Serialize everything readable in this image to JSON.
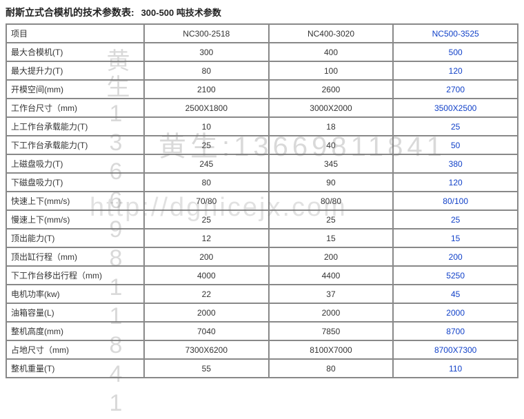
{
  "title_main": "耐斯立式合模机的技术参数表:",
  "title_sub": "300-500 吨技术参数",
  "columns": {
    "item": "项目",
    "nc300": "NC300-2518",
    "nc400": "NC400-3020",
    "nc500": "NC500-3525"
  },
  "rows": [
    {
      "label": "最大合模机(T)",
      "nc300": "300",
      "nc400": "400",
      "nc500": "500"
    },
    {
      "label": "最大提升力(T)",
      "nc300": "80",
      "nc400": "100",
      "nc500": "120"
    },
    {
      "label": "开模空间(mm)",
      "nc300": "2100",
      "nc400": "2600",
      "nc500": "2700"
    },
    {
      "label": "工作台尺寸（mm)",
      "nc300": "2500X1800",
      "nc400": "3000X2000",
      "nc500": "3500X2500"
    },
    {
      "label": "上工作台承载能力(T)",
      "nc300": "10",
      "nc400": "18",
      "nc500": "25"
    },
    {
      "label": "下工作台承载能力(T)",
      "nc300": "25",
      "nc400": "40",
      "nc500": "50"
    },
    {
      "label": "上磁盘吸力(T)",
      "nc300": "245",
      "nc400": "345",
      "nc500": "380"
    },
    {
      "label": "下磁盘吸力(T)",
      "nc300": "80",
      "nc400": "90",
      "nc500": "120"
    },
    {
      "label": "快速上下(mm/s)",
      "nc300": "70/80",
      "nc400": "80/80",
      "nc500": "80/100"
    },
    {
      "label": "慢速上下(mm/s)",
      "nc300": "25",
      "nc400": "25",
      "nc500": "25"
    },
    {
      "label": "顶出能力(T)",
      "nc300": "12",
      "nc400": "15",
      "nc500": "15"
    },
    {
      "label": "顶出缸行程（mm)",
      "nc300": "200",
      "nc400": "200",
      "nc500": "200"
    },
    {
      "label": "下工作台移出行程（mm)",
      "nc300": "4000",
      "nc400": "4400",
      "nc500": "5250"
    },
    {
      "label": "电机功率(kw)",
      "nc300": "22",
      "nc400": "37",
      "nc500": "45"
    },
    {
      "label": "油箱容量(L)",
      "nc300": "2000",
      "nc400": "2000",
      "nc500": "2000"
    },
    {
      "label": "整机高度(mm)",
      "nc300": "7040",
      "nc400": "7850",
      "nc500": "8700"
    },
    {
      "label": "占地尺寸（mm)",
      "nc300": "7300X6200",
      "nc400": "8100X7000",
      "nc500": "8700X7300"
    },
    {
      "label": "整机重量(T)",
      "nc300": "55",
      "nc400": "80",
      "nc500": "110"
    }
  ],
  "watermark": {
    "vertical": "黄生13669811841",
    "phone": "黄生:13669811841",
    "url": "http://dgnicejx.com"
  },
  "colors": {
    "highlight": "#1040c8",
    "border": "#888888",
    "text": "#333333",
    "watermark": "rgba(120,120,120,0.28)"
  }
}
